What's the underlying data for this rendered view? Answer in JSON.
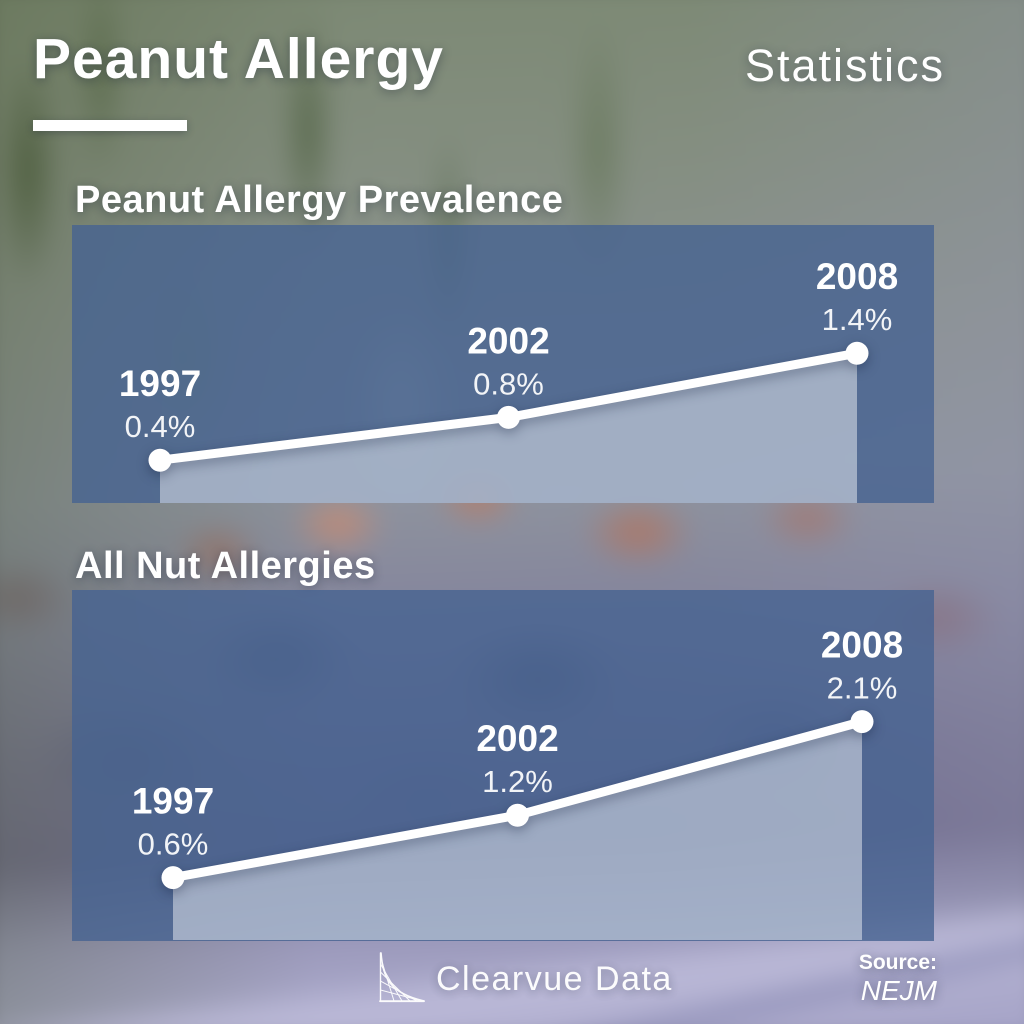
{
  "header": {
    "title": "Peanut Allergy",
    "subtitle": "Statistics"
  },
  "chart_data": [
    {
      "type": "line",
      "title": "Peanut Allergy Prevalence",
      "x": [
        1997,
        2002,
        2008
      ],
      "x_labels": [
        "1997",
        "2002",
        "2008"
      ],
      "values": [
        0.4,
        0.8,
        1.4
      ],
      "point_labels": [
        "0.4%",
        "0.8%",
        "1.4%"
      ],
      "unit": "%",
      "ylim": [
        0,
        2.6
      ],
      "area_fill": true,
      "grid": false,
      "legend": false
    },
    {
      "type": "line",
      "title": "All Nut Allergies",
      "x": [
        1997,
        2002,
        2008
      ],
      "x_labels": [
        "1997",
        "2002",
        "2008"
      ],
      "values": [
        0.6,
        1.2,
        2.1
      ],
      "point_labels": [
        "0.6%",
        "1.2%",
        "2.1%"
      ],
      "unit": "%",
      "ylim": [
        0,
        3.4
      ],
      "area_fill": true,
      "grid": false,
      "legend": false
    }
  ],
  "footer": {
    "brand": "Clearvue Data",
    "source_label": "Source:",
    "source_value": "NEJM"
  },
  "colors": {
    "text": "#ffffff",
    "line": "#ffffff",
    "dot": "#ffffff",
    "panel": "#466391CC",
    "area_fill": "#FFFFFF73"
  }
}
